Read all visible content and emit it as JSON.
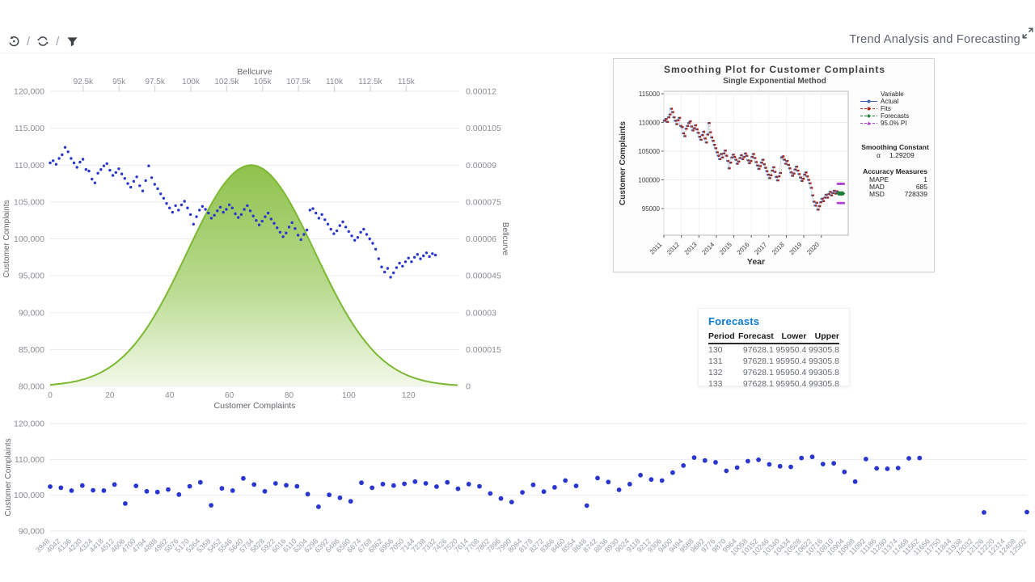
{
  "header": {
    "title": "Trend Analysis and Forecasting"
  },
  "toolbar": {
    "separator": "/",
    "icons": [
      {
        "name": "undo-history-icon"
      },
      {
        "name": "refresh-icon"
      },
      {
        "name": "filter-icon"
      }
    ]
  },
  "colors": {
    "point_blue": "#2936cf",
    "bell_green": "#8bbf45",
    "bell_green_light": "#f2f8e9",
    "bell_stroke": "#7cb832",
    "grid": "#ebebf0",
    "tick_text": "#8b8b95",
    "axis_title": "#65656e",
    "accent_blue": "#0b7bd8",
    "actual_blue": "#3a67b0",
    "fits_red": "#a6281c",
    "forecast_green": "#1a7f35",
    "pi_magenta": "#b03fd6"
  },
  "forecasts_table": {
    "title": "Forecasts",
    "columns": [
      "Period",
      "Forecast",
      "Lower",
      "Upper"
    ],
    "rows": [
      [
        "130",
        "97628.1",
        "95950.4",
        "99305.8"
      ],
      [
        "131",
        "97628.1",
        "95950.4",
        "99305.8"
      ],
      [
        "132",
        "97628.1",
        "95950.4",
        "99305.8"
      ],
      [
        "133",
        "97628.1",
        "95950.4",
        "99305.8"
      ]
    ]
  },
  "chart_data": [
    {
      "id": "complaints_bellcurve",
      "type": "scatter",
      "left_axis": {
        "title": "Customer Complaints",
        "min": 80000,
        "max": 120000,
        "tick_labels": [
          "120,000",
          "115,000",
          "110,000",
          "105,000",
          "100,000",
          "95,000",
          "90,000",
          "85,000",
          "80,000"
        ]
      },
      "right_axis": {
        "title": "Bellcurve",
        "min": 0,
        "max": 0.00012,
        "tick_labels": [
          "0.00012",
          "0.000105",
          "0.00009",
          "0.000075",
          "0.00006",
          "0.000045",
          "0.00003",
          "0.000015",
          "0"
        ]
      },
      "top_axis": {
        "title": "Bellcurve",
        "min": 90200,
        "max": 118700,
        "tick_values": [
          92500,
          95000,
          97500,
          100000,
          102500,
          105000,
          107500,
          110000,
          112500,
          115000
        ],
        "tick_labels": [
          "92.5k",
          "95k",
          "97.5k",
          "100k",
          "102.5k",
          "105k",
          "107.5k",
          "110k",
          "112.5k",
          "115k"
        ]
      },
      "bottom_axis": {
        "title": "Customer Complaints",
        "min": 0,
        "max": 137,
        "tick_values": [
          0,
          20,
          40,
          60,
          80,
          100,
          120
        ]
      },
      "bellcurve": {
        "mean": 104200,
        "sd": 4450,
        "peak": 9e-05
      },
      "points": [
        110300,
        110600,
        110100,
        110900,
        111400,
        112400,
        111800,
        110900,
        110300,
        109700,
        110400,
        110800,
        109400,
        109200,
        108100,
        107600,
        108900,
        109400,
        109900,
        110200,
        109300,
        108600,
        109000,
        109500,
        108800,
        108200,
        107500,
        107000,
        107800,
        108400,
        107200,
        106500,
        107900,
        109900,
        108300,
        107400,
        106800,
        106100,
        105500,
        104800,
        104200,
        103600,
        104500,
        103900,
        104600,
        105100,
        104200,
        103300,
        102000,
        103000,
        103900,
        104400,
        104000,
        103500,
        102800,
        103200,
        103800,
        104300,
        103600,
        104000,
        104600,
        104200,
        103400,
        102900,
        103300,
        104000,
        104500,
        103800,
        103100,
        102500,
        101900,
        102400,
        103000,
        103500,
        102700,
        102100,
        101500,
        100900,
        100300,
        100800,
        101600,
        102200,
        101400,
        100500,
        99900,
        100600,
        101200,
        103900,
        104100,
        103500,
        102800,
        103300,
        102600,
        102000,
        101300,
        100700,
        101100,
        101800,
        102300,
        101600,
        101000,
        100400,
        99800,
        100200,
        100900,
        101300,
        100600,
        100000,
        99400,
        98600,
        97300,
        96200,
        95500,
        96000,
        94800,
        95400,
        96100,
        96700,
        96300,
        96900,
        97400,
        96900,
        97500,
        97900,
        97300,
        97700,
        98100,
        97600,
        98000,
        97800
      ]
    },
    {
      "id": "smoothing_plot",
      "type": "line",
      "title": "Smoothing Plot for Customer Complaints",
      "subtitle": "Single Exponential Method",
      "xlabel": "Year",
      "ylabel": "Customer Complaints",
      "y_ticks": [
        95000,
        100000,
        105000,
        110000,
        115000
      ],
      "y_min": 90350,
      "y_max": 115000,
      "x_tick_labels": [
        "2011",
        "2012",
        "2013",
        "2014",
        "2015",
        "2016",
        "2017",
        "2018",
        "2019",
        "2020"
      ],
      "points_per_year": 13,
      "x_index_max": 137,
      "uses_points_of": "complaints_bellcurve",
      "legend": {
        "header": "Variable",
        "items": [
          {
            "label": "Actual",
            "marker": "circle",
            "color": "#3a67b0"
          },
          {
            "label": "Fits",
            "marker": "square",
            "color": "#a6281c"
          },
          {
            "label": "Forecasts",
            "marker": "diamond",
            "color": "#1a7f35"
          },
          {
            "label": "95.0% PI",
            "marker": "triangle",
            "color": "#b03fd6"
          }
        ]
      },
      "smoothing_constant": {
        "label": "Smoothing Constant",
        "alpha_symbol": "α",
        "alpha": "1.29209"
      },
      "accuracy": {
        "label": "Accuracy Measures",
        "rows": [
          [
            "MAPE",
            "1"
          ],
          [
            "MAD",
            "685"
          ],
          [
            "MSD",
            "728339"
          ]
        ]
      },
      "forecast_indices": [
        130,
        131,
        132,
        133
      ],
      "forecast_value": 97628.1,
      "pi_upper": 99305.8,
      "pi_lower": 95950.4
    },
    {
      "id": "complaints_scatter",
      "type": "scatter",
      "ylabel": "Customer Complaints",
      "y_ticks": [
        120000,
        110000,
        100000,
        90000
      ],
      "y_tick_labels": [
        "120,000",
        "110,000",
        "100,000",
        "90,000"
      ],
      "categories": [
        3948,
        4042,
        4136,
        4230,
        4324,
        4418,
        4512,
        4606,
        4700,
        4794,
        4888,
        4982,
        5076,
        5170,
        5264,
        5358,
        5452,
        5546,
        5640,
        5734,
        5828,
        5922,
        6016,
        6110,
        6204,
        6298,
        6392,
        6486,
        6580,
        6674,
        6768,
        6862,
        6956,
        7050,
        7144,
        7238,
        7332,
        7426,
        7520,
        7614,
        7708,
        7802,
        7896,
        7990,
        8084,
        8178,
        8272,
        8366,
        8460,
        8554,
        8648,
        8742,
        8836,
        8930,
        9024,
        9118,
        9212,
        9306,
        9400,
        9494,
        9588,
        9682,
        9776,
        9870,
        9964,
        10058,
        10152,
        10246,
        10340,
        10434,
        10528,
        10622,
        10716,
        10810,
        10904,
        10998,
        11092,
        11186,
        11280,
        11374,
        11468,
        11562,
        11656,
        11750,
        11844,
        11938,
        12032,
        12126,
        12220,
        12314,
        12408,
        12502
      ],
      "values": [
        102400,
        102100,
        101300,
        102700,
        101400,
        101300,
        103000,
        97700,
        102600,
        101100,
        100900,
        101600,
        100200,
        102500,
        103600,
        97200,
        101900,
        101300,
        104700,
        103000,
        101100,
        103300,
        102800,
        102500,
        100300,
        96800,
        100100,
        99300,
        98300,
        103500,
        102100,
        103100,
        102700,
        103200,
        103800,
        103300,
        102400,
        103600,
        101800,
        103100,
        102500,
        100500,
        99100,
        98100,
        100800,
        102900,
        101000,
        102200,
        104100,
        102600,
        97100,
        104800,
        103700,
        101500,
        103100,
        105600,
        104400,
        104100,
        106300,
        108300,
        110500,
        109700,
        109200,
        106800,
        107700,
        109500,
        109900,
        108600,
        108100,
        107900,
        110400,
        110700,
        108700,
        108900,
        106500,
        103800,
        110100,
        107500,
        107400,
        107600,
        110300,
        110400,
        null,
        null,
        null,
        null,
        null,
        95200,
        null,
        null,
        null,
        95300
      ]
    }
  ]
}
